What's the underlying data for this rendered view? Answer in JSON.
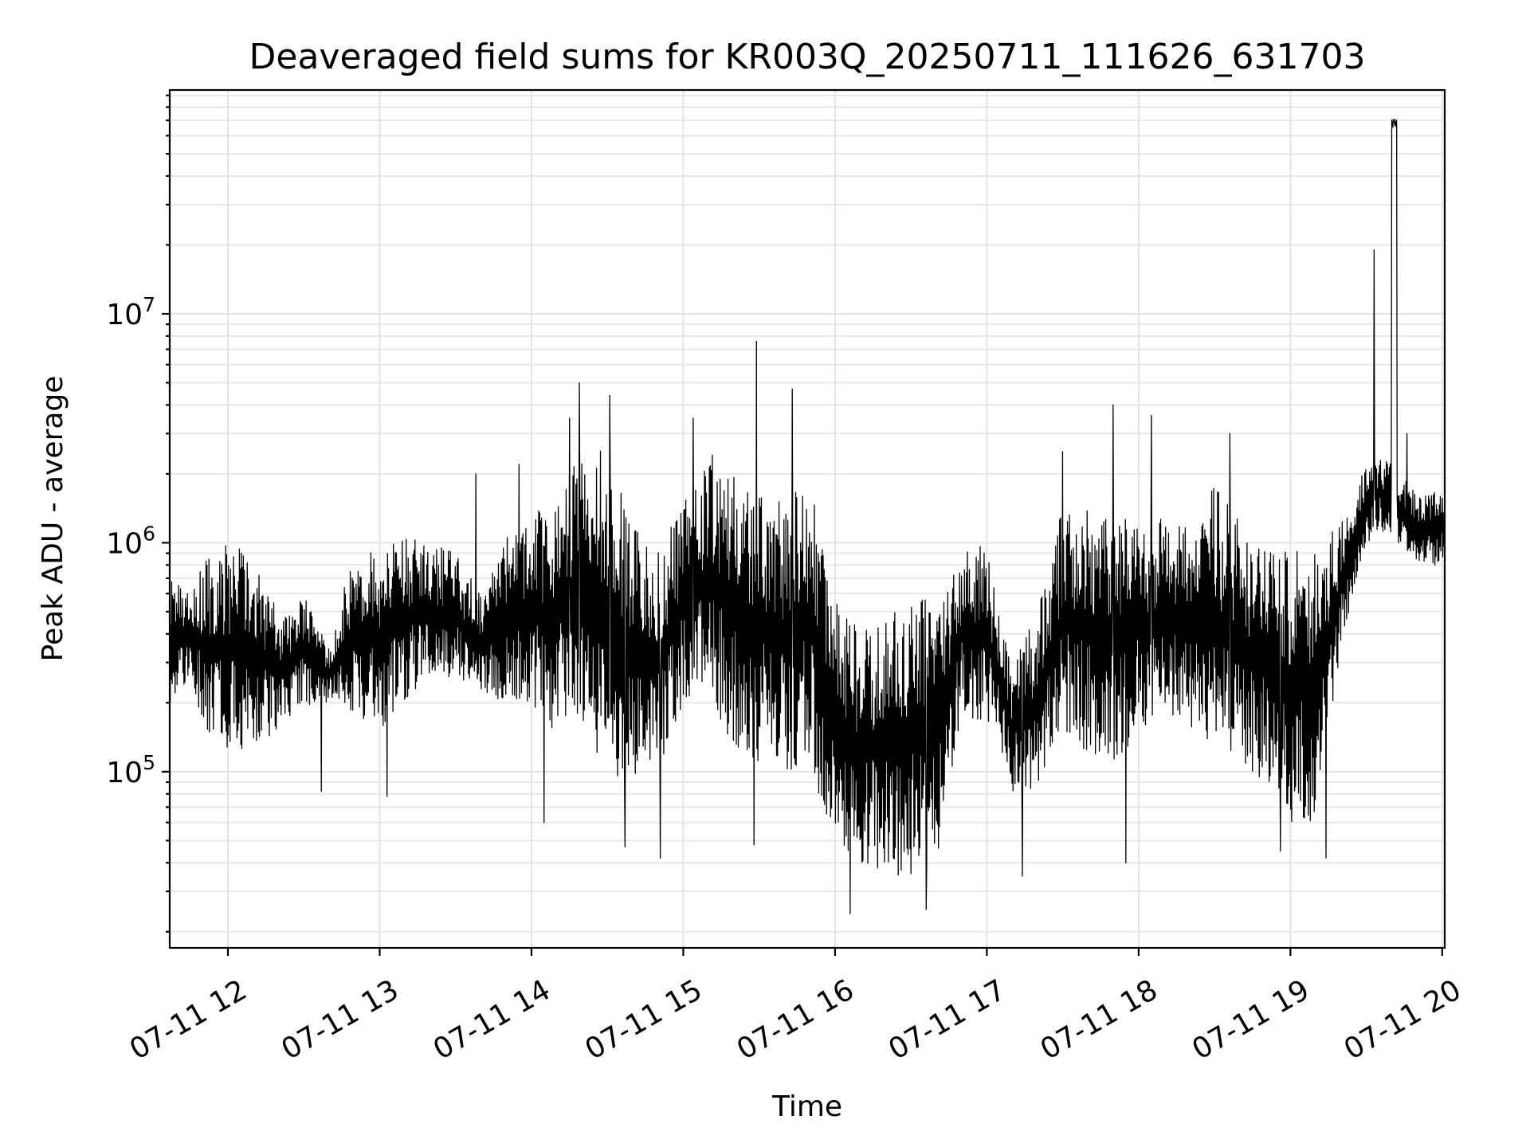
{
  "chart_data": {
    "type": "line",
    "title": "Deaveraged field sums for KR003Q_20250711_111626_631703",
    "xlabel": "Time",
    "ylabel": "Peak ADU - average",
    "yscale": "log",
    "grid": "on (major and minor)",
    "legend": "none",
    "xlim": [
      "07-11 11:37",
      "07-11 20:01"
    ],
    "ylim": [
      17000,
      95000000
    ],
    "x_ticks": [
      {
        "label": "07-11 12",
        "hour": 12
      },
      {
        "label": "07-11 13",
        "hour": 13
      },
      {
        "label": "07-11 14",
        "hour": 14
      },
      {
        "label": "07-11 15",
        "hour": 15
      },
      {
        "label": "07-11 16",
        "hour": 16
      },
      {
        "label": "07-11 17",
        "hour": 17
      },
      {
        "label": "07-11 18",
        "hour": 18
      },
      {
        "label": "07-11 19",
        "hour": 19
      },
      {
        "label": "07-11 20",
        "hour": 20
      }
    ],
    "y_ticks": [
      {
        "base": "10",
        "exp": "5",
        "value": 100000
      },
      {
        "base": "10",
        "exp": "6",
        "value": 1000000
      },
      {
        "base": "10",
        "exp": "7",
        "value": 10000000
      }
    ],
    "line_color": "#000000",
    "series": [
      {
        "x": [
          "11:37",
          "11:45",
          "11:52",
          "12:00",
          "12:10",
          "12:20",
          "12:30",
          "12:40",
          "12:50",
          "13:00",
          "13:10",
          "13:20",
          "13:30",
          "13:40",
          "13:50",
          "14:00",
          "14:10",
          "14:20",
          "14:30",
          "14:40",
          "14:50",
          "15:00",
          "15:10",
          "15:20",
          "15:30",
          "15:40",
          "15:50",
          "16:00",
          "16:10",
          "16:20",
          "16:30",
          "16:40",
          "16:50",
          "17:00",
          "17:10",
          "17:20",
          "17:30",
          "17:40",
          "17:50",
          "18:00",
          "18:10",
          "18:20",
          "18:30",
          "18:40",
          "18:50",
          "19:00",
          "19:10",
          "19:20",
          "19:30",
          "19:35",
          "19:40",
          "19:45",
          "19:50",
          "20:01"
        ],
        "y_low": [
          200000,
          250000,
          140000,
          120000,
          130000,
          150000,
          190000,
          200000,
          180000,
          150000,
          200000,
          250000,
          250000,
          220000,
          200000,
          180000,
          150000,
          150000,
          100000,
          90000,
          100000,
          200000,
          200000,
          130000,
          110000,
          100000,
          110000,
          45000,
          40000,
          35000,
          35000,
          40000,
          180000,
          160000,
          80000,
          80000,
          150000,
          120000,
          100000,
          150000,
          180000,
          150000,
          120000,
          100000,
          90000,
          60000,
          60000,
          350000,
          1000000,
          1100000,
          1100000,
          900000,
          800000,
          800000
        ],
        "y_high": [
          700000,
          600000,
          900000,
          1000000,
          900000,
          500000,
          600000,
          350000,
          1000000,
          900000,
          1100000,
          1000000,
          900000,
          600000,
          1200000,
          1300000,
          1600000,
          3000000,
          2500000,
          1200000,
          900000,
          1500000,
          2500000,
          2000000,
          1800000,
          1500000,
          2000000,
          600000,
          400000,
          500000,
          600000,
          600000,
          900000,
          1000000,
          300000,
          500000,
          1500000,
          1500000,
          1500000,
          1200000,
          1300000,
          1300000,
          1800000,
          1300000,
          1000000,
          900000,
          1000000,
          1200000,
          2200000,
          2500000,
          2200000,
          2000000,
          1600000,
          1700000
        ]
      }
    ],
    "spikes": [
      {
        "x": "13:38",
        "y": 2000000
      },
      {
        "x": "13:55",
        "y": 2200000
      },
      {
        "x": "14:15",
        "y": 3500000
      },
      {
        "x": "14:19",
        "y": 5000000
      },
      {
        "x": "14:31",
        "y": 4400000
      },
      {
        "x": "15:04",
        "y": 3500000
      },
      {
        "x": "15:29",
        "y": 7600000
      },
      {
        "x": "15:43",
        "y": 4700000
      },
      {
        "x": "17:30",
        "y": 2500000
      },
      {
        "x": "17:50",
        "y": 4000000
      },
      {
        "x": "18:05",
        "y": 3600000
      },
      {
        "x": "18:36",
        "y": 3000000
      },
      {
        "x": "19:33",
        "y": 19000000
      },
      {
        "x": "19:40",
        "y": 65000000
      },
      {
        "x": "19:42",
        "y": 70000000
      },
      {
        "x": "19:46",
        "y": 3000000
      }
    ],
    "dips": [
      {
        "x": "12:37",
        "y": 82000
      },
      {
        "x": "13:03",
        "y": 78000
      },
      {
        "x": "14:05",
        "y": 60000
      },
      {
        "x": "14:37",
        "y": 47000
      },
      {
        "x": "14:51",
        "y": 42000
      },
      {
        "x": "15:28",
        "y": 48000
      },
      {
        "x": "16:06",
        "y": 24000
      },
      {
        "x": "16:36",
        "y": 25000
      },
      {
        "x": "17:14",
        "y": 35000
      },
      {
        "x": "17:55",
        "y": 40000
      },
      {
        "x": "18:56",
        "y": 45000
      },
      {
        "x": "19:14",
        "y": 42000
      }
    ]
  }
}
